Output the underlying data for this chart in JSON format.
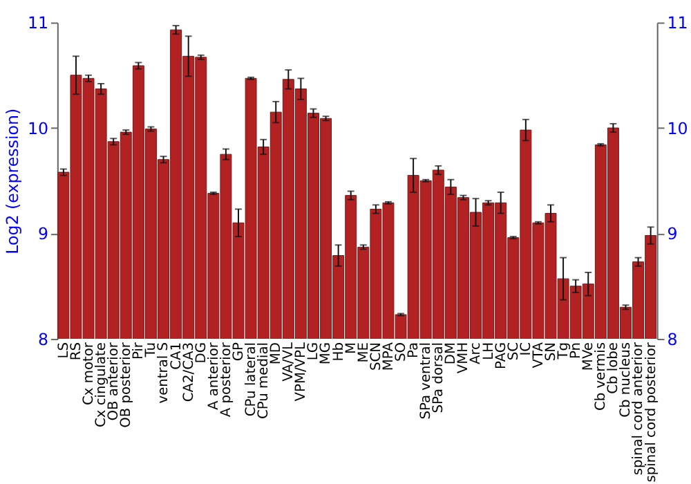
{
  "chart_data": {
    "type": "bar",
    "ylabel": "Log2 (expression)",
    "categories": [
      "LS",
      "RS",
      "Cx motor",
      "Cx cingulate",
      "OB anterior",
      "OB posterior",
      "Pir",
      "Tu",
      "ventral S",
      "CA1",
      "CA2/CA3",
      "DG",
      "A anterior",
      "A posterior",
      "GP",
      "CPu lateral",
      "CPu medial",
      "MD",
      "VA/VL",
      "VPM/VPL",
      "LG",
      "MG",
      "Hb",
      "M",
      "ME",
      "SCN",
      "MPA",
      "SO",
      "Pa",
      "SPa ventral",
      "SPa dorsal",
      "DM",
      "VMH",
      "Arc",
      "LH",
      "PAG",
      "SC",
      "IC",
      "VTA",
      "SN",
      "Tg",
      "Pn",
      "MVe",
      "Cb vermis",
      "Cb lobe",
      "Cb nucleus",
      "spinal cord anterior",
      "spinal cord posterior"
    ],
    "values": [
      9.58,
      10.5,
      10.47,
      10.37,
      9.87,
      9.96,
      10.59,
      9.99,
      9.7,
      10.93,
      10.68,
      10.67,
      9.38,
      9.75,
      9.1,
      10.47,
      9.82,
      10.15,
      10.46,
      10.37,
      10.14,
      10.09,
      8.79,
      9.36,
      8.87,
      9.23,
      9.29,
      8.23,
      9.55,
      9.5,
      9.6,
      9.44,
      9.34,
      9.2,
      9.29,
      9.29,
      8.96,
      9.98,
      9.1,
      9.19,
      8.57,
      8.5,
      8.52,
      9.84,
      10.0,
      8.3,
      8.73,
      8.98
    ],
    "errors": [
      0.03,
      0.18,
      0.03,
      0.05,
      0.03,
      0.02,
      0.03,
      0.02,
      0.03,
      0.04,
      0.19,
      0.02,
      0.01,
      0.05,
      0.13,
      0.01,
      0.07,
      0.1,
      0.09,
      0.1,
      0.04,
      0.02,
      0.1,
      0.04,
      0.02,
      0.04,
      0.01,
      0.01,
      0.16,
      0.01,
      0.04,
      0.07,
      0.02,
      0.13,
      0.02,
      0.1,
      0.01,
      0.1,
      0.01,
      0.08,
      0.2,
      0.06,
      0.11,
      0.01,
      0.04,
      0.02,
      0.04,
      0.08
    ],
    "color": "#b22222",
    "ylim": [
      8,
      11
    ],
    "yticks": [
      8,
      9,
      10,
      11
    ],
    "y2lim": [
      8,
      11
    ],
    "y2ticks": [
      8,
      9,
      10,
      11
    ],
    "grid": "y"
  }
}
